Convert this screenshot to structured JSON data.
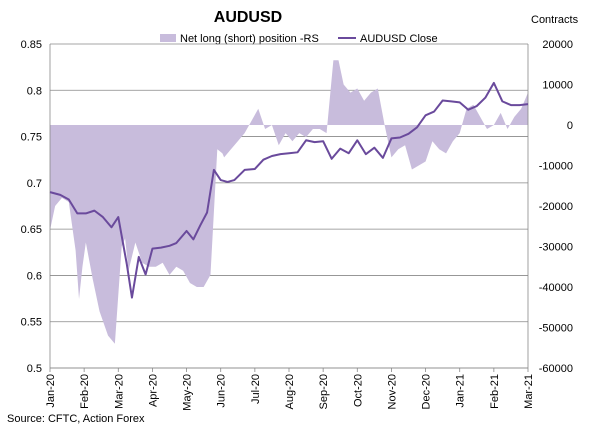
{
  "chart_data": {
    "type": "line",
    "title": "AUDUSD",
    "right_axis_title": "Contracts",
    "source": "Source: CFTC, Action Forex",
    "legend": {
      "position": "top",
      "entries": [
        "Net long (short) position -RS",
        "AUDUSD Close"
      ]
    },
    "colors": {
      "area": "#c8bcdc",
      "line": "#6a4a9c",
      "grid": "#888888"
    },
    "grid": true,
    "x_tick_labels": [
      "Jan-20",
      "Feb-20",
      "Mar-20",
      "Apr-20",
      "May-20",
      "Jun-20",
      "Jul-20",
      "Aug-20",
      "Sep-20",
      "Oct-20",
      "Nov-20",
      "Dec-20",
      "Jan-21",
      "Feb-21",
      "Mar-21"
    ],
    "left_axis": {
      "ylim": [
        0.5,
        0.85
      ],
      "ticks": [
        "0.85",
        "0.8",
        "0.75",
        "0.7",
        "0.65",
        "0.6",
        "0.55",
        "0.5"
      ]
    },
    "right_axis": {
      "ylim": [
        -60000,
        20000
      ],
      "ticks": [
        "20000",
        "10000",
        "0",
        "-10000",
        "-20000",
        "-30000",
        "-40000",
        "-50000",
        "-60000"
      ]
    },
    "x_range": [
      0,
      14
    ],
    "series": [
      {
        "name": "Net long (short) position -RS",
        "type": "area",
        "axis": "right",
        "x": [
          0.0,
          0.15,
          0.35,
          0.55,
          0.75,
          0.85,
          0.95,
          1.05,
          1.25,
          1.45,
          1.7,
          1.9,
          2.1,
          2.2,
          2.3,
          2.5,
          2.7,
          2.9,
          3.1,
          3.3,
          3.5,
          3.7,
          3.9,
          4.1,
          4.3,
          4.5,
          4.7,
          4.9,
          5.05,
          5.1,
          5.3,
          5.5,
          5.7,
          5.9,
          6.1,
          6.3,
          6.5,
          6.7,
          6.9,
          7.1,
          7.3,
          7.5,
          7.7,
          7.9,
          8.1,
          8.3,
          8.45,
          8.6,
          8.8,
          9.0,
          9.2,
          9.4,
          9.6,
          9.8,
          10.0,
          10.2,
          10.4,
          10.6,
          10.8,
          11.0,
          11.2,
          11.4,
          11.6,
          11.8,
          12.0,
          12.2,
          12.4,
          12.6,
          12.8,
          13.0,
          13.2,
          13.4,
          13.6,
          13.8,
          14.0
        ],
        "values": [
          -26000,
          -20000,
          -18000,
          -19000,
          -31000,
          -43000,
          -35000,
          -29000,
          -38000,
          -46000,
          -52000,
          -54000,
          -30000,
          -28000,
          -36000,
          -29000,
          -34000,
          -35000,
          -35000,
          -34000,
          -37000,
          -35000,
          -36000,
          -39000,
          -40000,
          -40000,
          -37000,
          -6000,
          -7000,
          -8000,
          -6000,
          -4000,
          -2000,
          1000,
          4000,
          -1000,
          0,
          -5000,
          -2000,
          -4000,
          -2000,
          -3000,
          -1000,
          -1000,
          -2000,
          16000,
          16000,
          10000,
          8000,
          9000,
          6000,
          8000,
          9000,
          0,
          -8000,
          -6000,
          -5000,
          -11000,
          -10000,
          -9000,
          -4000,
          -6000,
          -7000,
          -4000,
          -2000,
          4000,
          5000,
          2000,
          -1000,
          0,
          3000,
          -1000,
          2000,
          4000,
          8000
        ]
      },
      {
        "name": "AUDUSD Close",
        "type": "line",
        "axis": "left",
        "x": [
          0.0,
          0.3,
          0.55,
          0.8,
          1.05,
          1.3,
          1.55,
          1.8,
          2.0,
          2.25,
          2.4,
          2.6,
          2.8,
          3.0,
          3.25,
          3.5,
          3.7,
          4.0,
          4.2,
          4.4,
          4.6,
          4.8,
          5.0,
          5.2,
          5.4,
          5.7,
          6.0,
          6.25,
          6.5,
          6.75,
          7.0,
          7.25,
          7.5,
          7.75,
          8.0,
          8.25,
          8.5,
          8.75,
          9.0,
          9.25,
          9.5,
          9.75,
          10.0,
          10.25,
          10.5,
          10.75,
          11.0,
          11.25,
          11.5,
          11.75,
          12.0,
          12.25,
          12.5,
          12.75,
          13.0,
          13.25,
          13.5,
          13.75,
          14.0
        ],
        "values": [
          0.69,
          0.687,
          0.682,
          0.667,
          0.667,
          0.67,
          0.663,
          0.652,
          0.663,
          0.612,
          0.576,
          0.62,
          0.601,
          0.629,
          0.63,
          0.632,
          0.635,
          0.648,
          0.639,
          0.654,
          0.668,
          0.714,
          0.703,
          0.701,
          0.703,
          0.714,
          0.715,
          0.725,
          0.729,
          0.731,
          0.732,
          0.733,
          0.746,
          0.744,
          0.745,
          0.726,
          0.737,
          0.732,
          0.746,
          0.731,
          0.738,
          0.727,
          0.748,
          0.749,
          0.753,
          0.76,
          0.773,
          0.777,
          0.789,
          0.788,
          0.787,
          0.779,
          0.783,
          0.792,
          0.808,
          0.788,
          0.784,
          0.784,
          0.785
        ]
      }
    ]
  }
}
